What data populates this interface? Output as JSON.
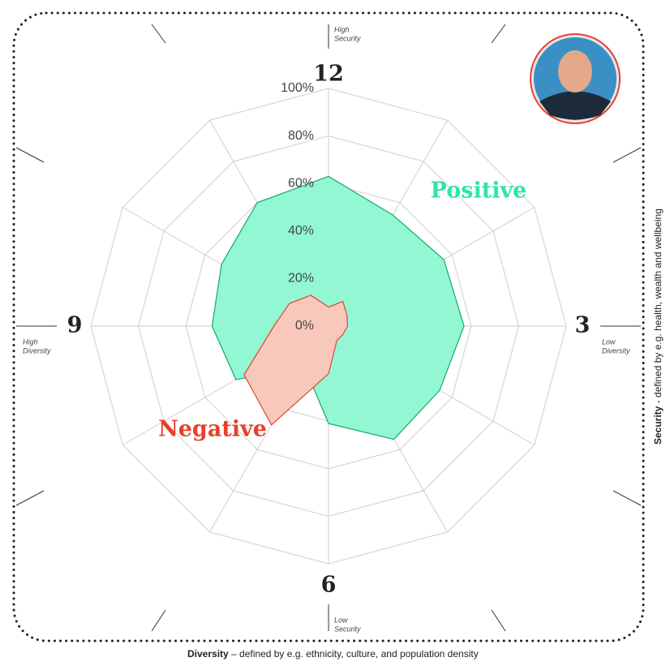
{
  "chart_data": {
    "type": "radar",
    "categories": [
      "12",
      null,
      null,
      "3",
      null,
      null,
      "6",
      null,
      null,
      "9",
      null,
      null
    ],
    "category_notes": [
      [
        "High",
        "Security"
      ],
      null,
      null,
      [
        "Low",
        "Diversity"
      ],
      null,
      null,
      [
        "Low",
        "Security"
      ],
      null,
      null,
      [
        "High",
        "Diversity"
      ],
      null,
      null
    ],
    "series": [
      {
        "name": "Positive",
        "color": "#19a864",
        "fill": "#92f7d2",
        "label_color": "#2fe6a2",
        "values": [
          63,
          54,
          56,
          57,
          54,
          55,
          41,
          20,
          45,
          49,
          52,
          60
        ]
      },
      {
        "name": "Negative",
        "color": "#e3452f",
        "fill": "#f8c8bc",
        "label_color": "#e8402a",
        "values": [
          8,
          12,
          9,
          8,
          7,
          7,
          20,
          48,
          41,
          23,
          19,
          15
        ]
      }
    ],
    "rlim": [
      0,
      100
    ],
    "rticks": [
      {
        "value": 0,
        "label": "0%"
      },
      {
        "value": 20,
        "label": "20%"
      },
      {
        "value": 40,
        "label": "40%"
      },
      {
        "value": 60,
        "label": "60%"
      },
      {
        "value": 80,
        "label": "80%"
      },
      {
        "value": 100,
        "label": "100%"
      }
    ],
    "grid": true,
    "x_axis_title": {
      "bold": "Diversity",
      "text": "– defined by e.g. ethnicity, culture, and population density"
    },
    "y_axis_title": {
      "bold": "Security",
      "text": "- defined by e.g. health, wealth and wellbeing"
    }
  }
}
